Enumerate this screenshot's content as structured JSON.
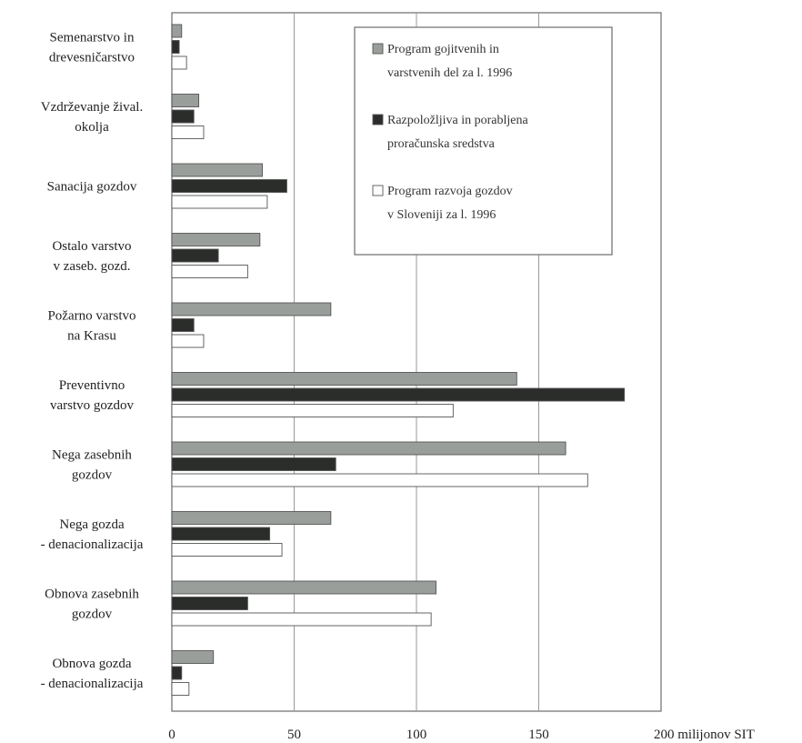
{
  "chart_data": {
    "type": "bar",
    "orientation": "horizontal",
    "categories": [
      [
        "Semenarstvo in",
        "drevesničarstvo"
      ],
      [
        "Vzdrževanje žival.",
        "okolja"
      ],
      [
        "Sanacija gozdov"
      ],
      [
        "Ostalo varstvo",
        "v zaseb. gozd."
      ],
      [
        "Požarno varstvo",
        "na Krasu"
      ],
      [
        "Preventivno",
        "varstvo gozdov"
      ],
      [
        "Nega zasebnih",
        "gozdov"
      ],
      [
        "Nega gozda",
        "- denacionalizacija"
      ],
      [
        "Obnova zasebnih",
        "gozdov"
      ],
      [
        "Obnova gozda",
        "- denacionalizacija"
      ]
    ],
    "series": [
      {
        "name": "Program gojitvenih in varstvenih del za l. 1996",
        "legend_lines": [
          "Program gojitvenih in",
          "varstvenih del za l. 1996"
        ],
        "color": "#9a9e9a",
        "values": [
          4,
          11,
          37,
          36,
          65,
          141,
          161,
          65,
          108,
          17
        ]
      },
      {
        "name": "Razpoložljiva in porabljena proračunska sredstva",
        "legend_lines": [
          "Razpoložljiva in porabljena",
          "proračunska sredstva"
        ],
        "color": "#2a2d2a",
        "values": [
          3,
          9,
          47,
          19,
          9,
          185,
          67,
          40,
          31,
          4
        ]
      },
      {
        "name": "Program razvoja gozdov v Sloveniji za l. 1996",
        "legend_lines": [
          "Program razvoja gozdov",
          "v Sloveniji za l. 1996"
        ],
        "color": "#ffffff",
        "values": [
          6,
          13,
          39,
          31,
          13,
          115,
          170,
          45,
          106,
          7
        ]
      }
    ],
    "xlim": [
      0,
      200
    ],
    "xticks": [
      "0",
      "50",
      "100",
      "150",
      "200 milijonov SIT"
    ],
    "xtick_values": [
      0,
      50,
      100,
      150,
      200
    ],
    "grid": "vertical",
    "legend_position": "top-right"
  }
}
